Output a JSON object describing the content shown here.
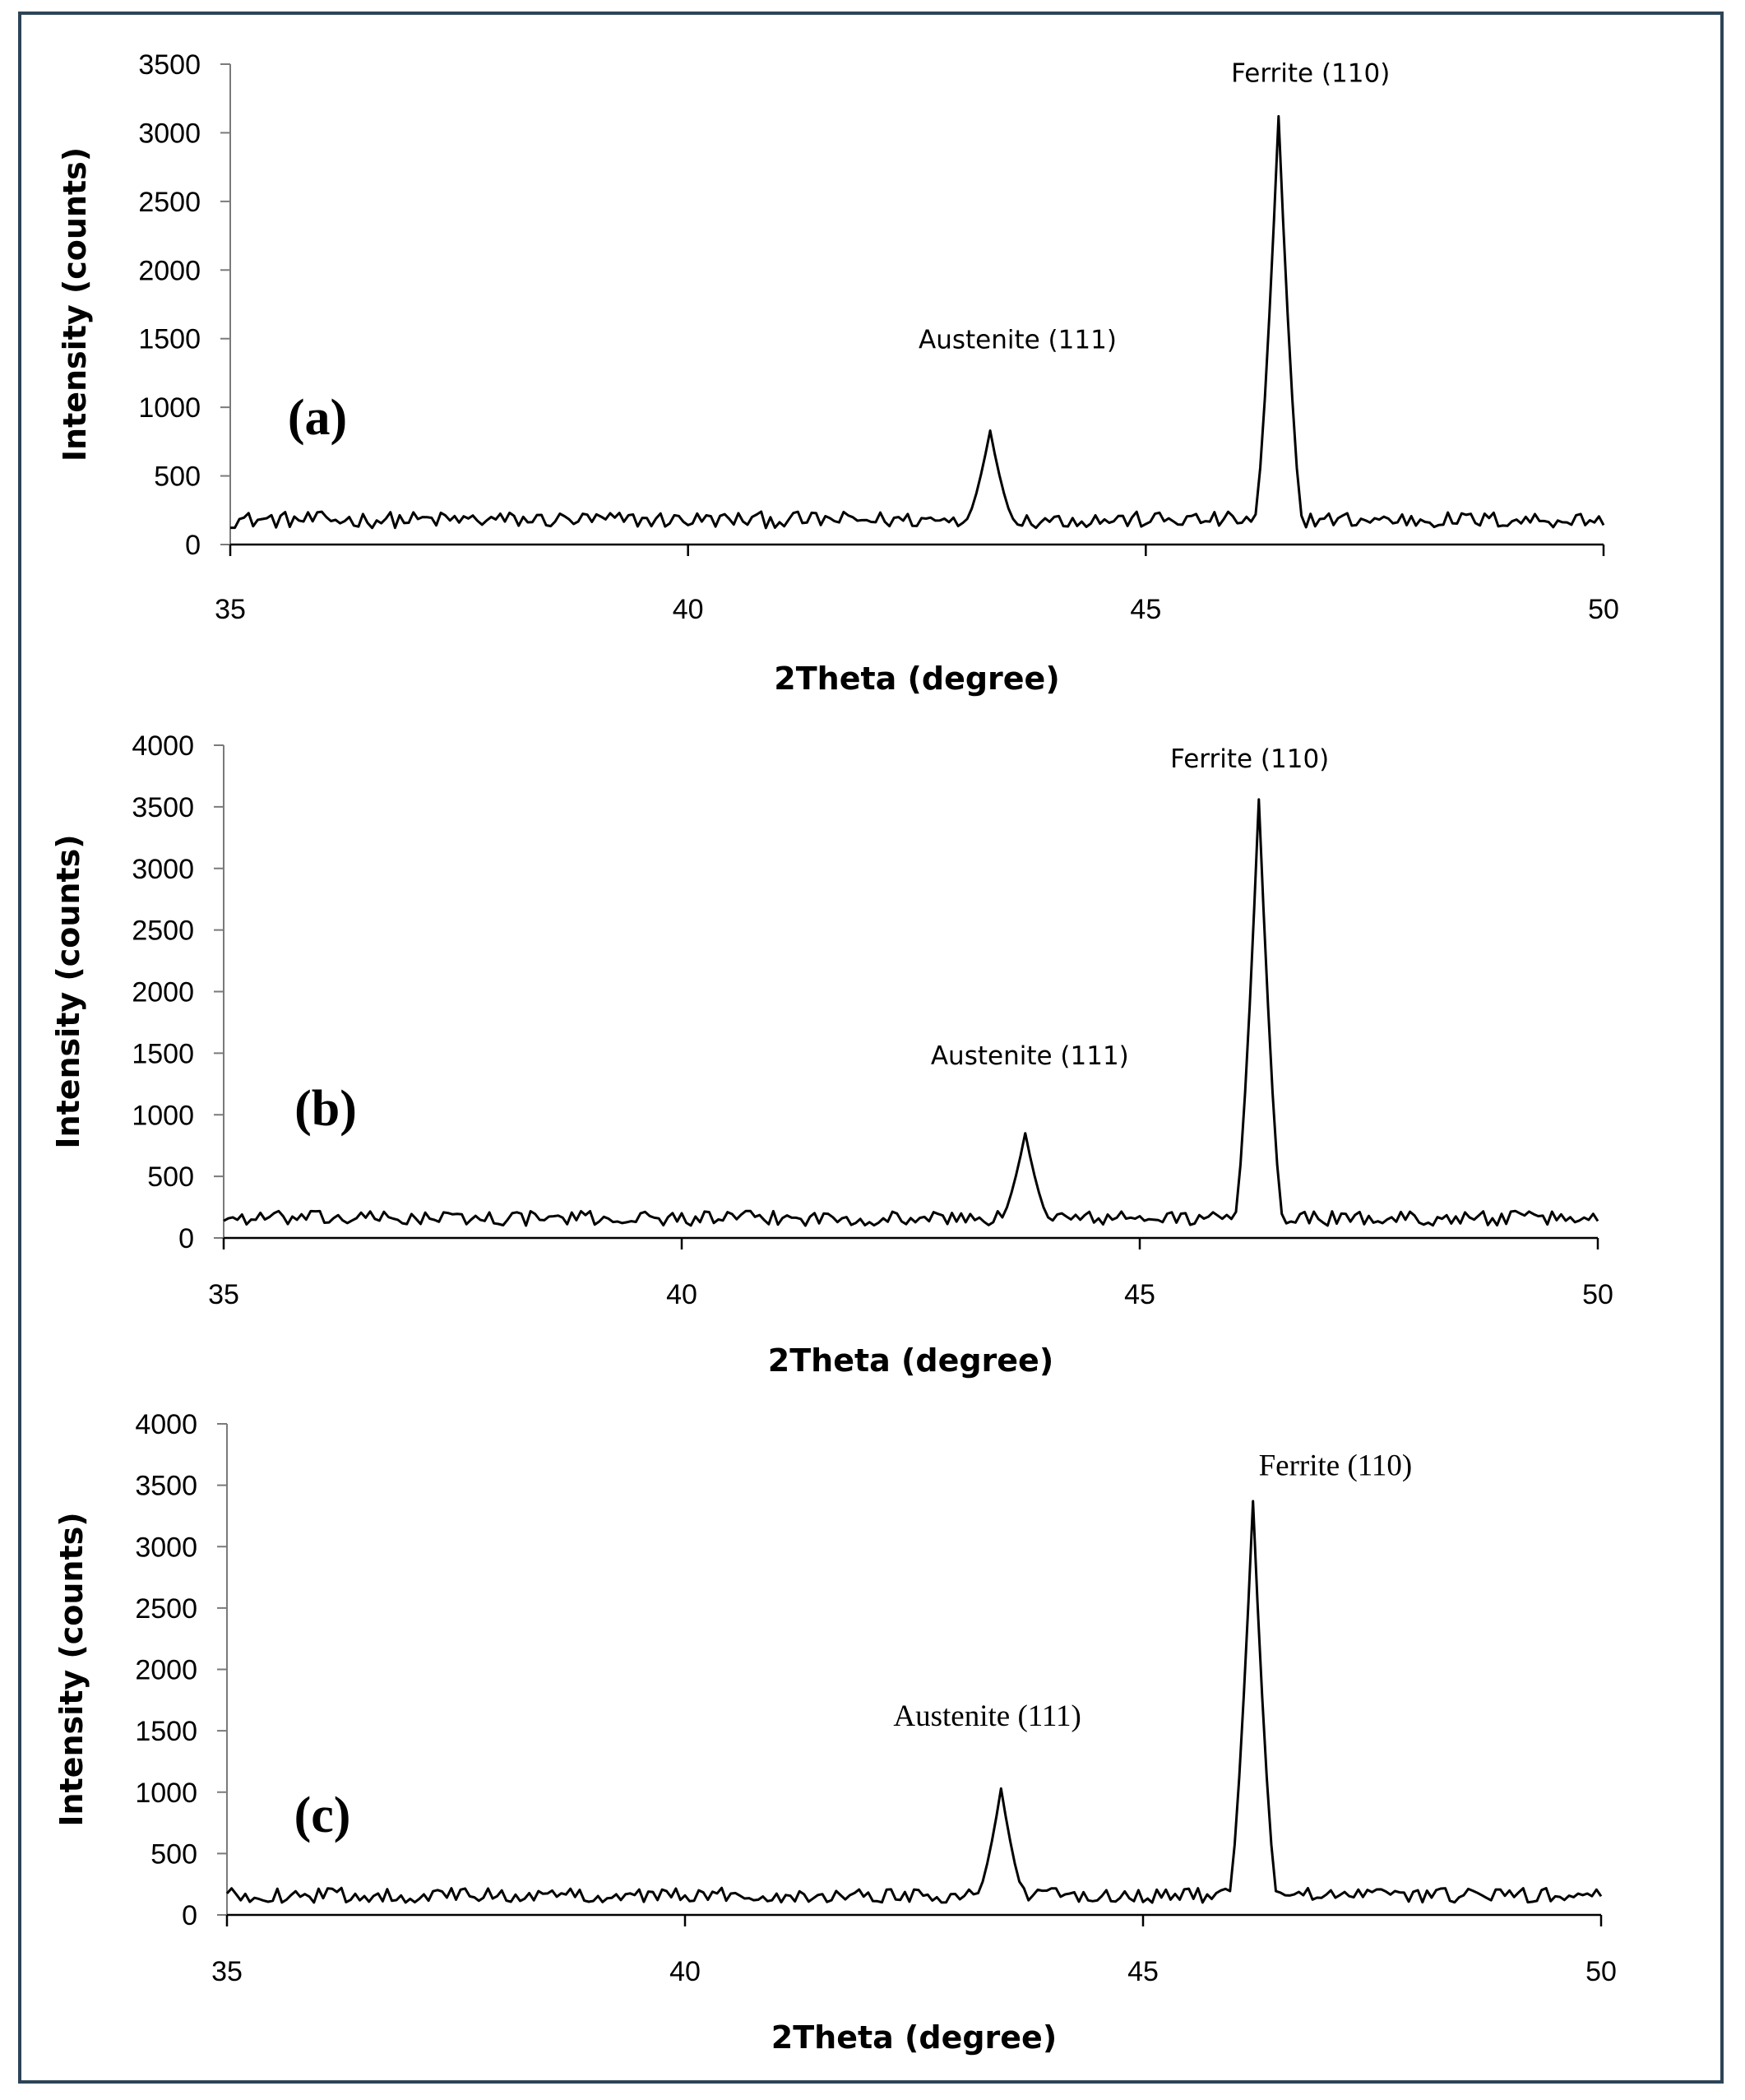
{
  "chart_data": [
    {
      "type": "line",
      "panel_label": "(a)",
      "xlabel": "2Theta  (degree)",
      "ylabel": "Intensity (counts)",
      "xlim": [
        35,
        50
      ],
      "ylim": [
        0,
        3500
      ],
      "xticks": [
        35,
        40,
        45,
        50
      ],
      "yticks": [
        0,
        500,
        1000,
        1500,
        2000,
        2500,
        3000,
        3500
      ],
      "grid": false,
      "baseline_counts": 180,
      "peaks": [
        {
          "name": "Austenite (111)",
          "two_theta": 43.3,
          "intensity": 830
        },
        {
          "name": "Ferrite (110)",
          "two_theta": 46.45,
          "intensity": 3120
        }
      ],
      "annotations": [
        {
          "text": "Austenite (111)",
          "x": 43.6,
          "y": 1430
        },
        {
          "text": "Ferrite (110)",
          "x": 46.8,
          "y": 3370
        }
      ]
    },
    {
      "type": "line",
      "panel_label": "(b)",
      "xlabel": "2Theta  (degree)",
      "ylabel": "Intensity (counts)",
      "xlim": [
        35,
        50
      ],
      "ylim": [
        0,
        4000
      ],
      "xticks": [
        35,
        40,
        45,
        50
      ],
      "yticks": [
        0,
        500,
        1000,
        1500,
        2000,
        2500,
        3000,
        3500,
        4000
      ],
      "grid": false,
      "baseline_counts": 160,
      "peaks": [
        {
          "name": "Austenite (111)",
          "two_theta": 43.75,
          "intensity": 850
        },
        {
          "name": "Ferrite (110)",
          "two_theta": 46.3,
          "intensity": 3560
        }
      ],
      "annotations": [
        {
          "text": "Austenite (111)",
          "x": 43.8,
          "y": 1410
        },
        {
          "text": "Ferrite (110)",
          "x": 46.2,
          "y": 3820
        }
      ]
    },
    {
      "type": "line",
      "panel_label": "(c)",
      "xlabel": "2Theta  (degree)",
      "ylabel": "Intensity (counts)",
      "xlim": [
        35,
        50
      ],
      "ylim": [
        0,
        4000
      ],
      "xticks": [
        35,
        40,
        45,
        50
      ],
      "yticks": [
        0,
        500,
        1000,
        1500,
        2000,
        2500,
        3000,
        3500,
        4000
      ],
      "grid": false,
      "baseline_counts": 160,
      "peaks": [
        {
          "name": "Austenite (111)",
          "two_theta": 43.45,
          "intensity": 1030
        },
        {
          "name": "Ferrite (110)",
          "two_theta": 46.2,
          "intensity": 3370
        }
      ],
      "annotations": [
        {
          "text": "Austenite (111)",
          "x": 43.3,
          "y": 1540
        },
        {
          "text": "Ferrite (110)",
          "x": 47.1,
          "y": 3580
        }
      ]
    }
  ]
}
